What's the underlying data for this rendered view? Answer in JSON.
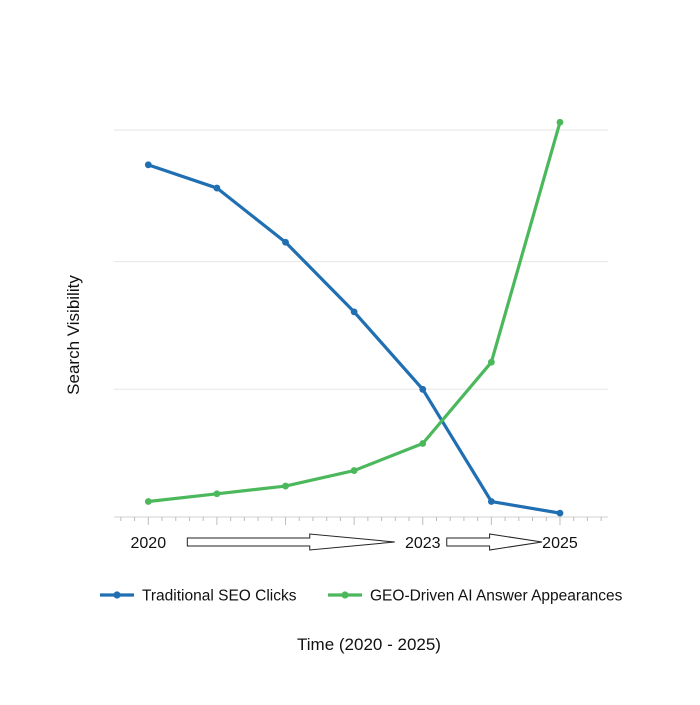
{
  "chart_data": {
    "type": "line",
    "title": "",
    "xlabel": "Time (2020 - 2025)",
    "ylabel": "Search Visibility",
    "x": [
      0,
      1,
      2,
      3,
      4,
      5,
      6
    ],
    "xlim": [
      -0.5,
      6.7
    ],
    "ylim": [
      0,
      100
    ],
    "x_tick_labels": [
      {
        "x": 0,
        "label": "2020"
      },
      {
        "x": 4,
        "label": "2023"
      },
      {
        "x": 6,
        "label": "2025"
      }
    ],
    "grid": "horizontal",
    "y_tick_labels_visible": false,
    "legend_position": "bottom",
    "series": [
      {
        "name": "Traditional SEO Clicks",
        "color": "#1f6fb2",
        "values": [
          91,
          85,
          71,
          53,
          33,
          4,
          1
        ]
      },
      {
        "name": "GEO-Driven AI Answer Appearances",
        "color": "#4cb85c",
        "values": [
          4,
          6,
          8,
          12,
          19,
          40,
          102
        ]
      }
    ]
  }
}
